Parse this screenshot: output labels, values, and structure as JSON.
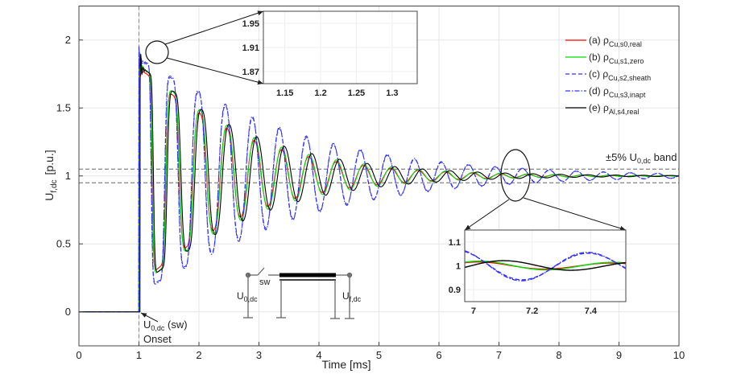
{
  "chart_data": {
    "type": "line",
    "xlabel": "Time  [ms]",
    "ylabel_main": "U",
    "ylabel_sub": "f,dc",
    "ylabel_unit": "[p.u.]",
    "xlim": [
      0,
      10
    ],
    "ylim": [
      -0.25,
      2.25
    ],
    "xticks": [
      "0",
      "1",
      "2",
      "3",
      "4",
      "5",
      "6",
      "7",
      "8",
      "9",
      "10"
    ],
    "yticks": [
      "0",
      "0.5",
      "1",
      "1.5",
      "2"
    ],
    "grid": true,
    "legend_position": "top-right",
    "onset_time": 1.0,
    "band": {
      "upper": 1.05,
      "lower": 0.95,
      "label": "±5% U",
      "label_sub": "0,dc",
      "label_tail": " band"
    },
    "series": [
      {
        "id": "a",
        "label": "(a) ρ",
        "sub": "Cu,s0,real",
        "color": "#ff0000",
        "dash": "",
        "decay_ms": 1.93,
        "period_ms": 0.455,
        "lag_ms": 0.0,
        "start_value": 1.84,
        "final_value": 1.0
      },
      {
        "id": "b",
        "label": "(b) ρ",
        "sub": "Cu,s1,zero",
        "color": "#00dd00",
        "dash": "",
        "decay_ms": 2.05,
        "period_ms": 0.455,
        "lag_ms": 0.005,
        "start_value": 1.86,
        "final_value": 1.0
      },
      {
        "id": "c",
        "label": "(c) ρ",
        "sub": "Cu,s2,sheath",
        "color": "#3333ff",
        "dash": "5,3",
        "decay_ms": 3.3,
        "period_ms": 0.45,
        "lag_ms": -0.01,
        "start_value": 1.9,
        "final_value": 1.0
      },
      {
        "id": "d",
        "label": "(d) ρ",
        "sub": "Cu,s3,inapt",
        "color": "#3333ff",
        "dash": "6,2,1.5,2",
        "decay_ms": 3.4,
        "period_ms": 0.45,
        "lag_ms": -0.012,
        "start_value": 1.91,
        "final_value": 1.0
      },
      {
        "id": "e",
        "label": "(e) ρ",
        "sub": "Al,s4,real",
        "color": "#000000",
        "dash": "",
        "decay_ms": 2.15,
        "period_ms": 0.46,
        "lag_ms": 0.02,
        "start_value": 1.85,
        "final_value": 1.0
      }
    ],
    "inset_top": {
      "xlim": [
        1.12,
        1.335
      ],
      "ylim": [
        1.85,
        1.97
      ],
      "xticks": [
        "1.15",
        "1.2",
        "1.25",
        "1.3"
      ],
      "yticks": [
        "1.87",
        "1.91",
        "1.95"
      ]
    },
    "inset_bottom": {
      "xlim": [
        6.97,
        7.52
      ],
      "ylim": [
        0.85,
        1.15
      ],
      "xticks": [
        "7",
        "7.2",
        "7.4"
      ],
      "yticks": [
        "0.9",
        "1",
        "1.1"
      ]
    },
    "annotations": {
      "onset_main": "U",
      "onset_sub": "0,dc",
      "onset_tail": " (sw)",
      "onset_label": "Onset"
    },
    "circuit": {
      "sw": "sw",
      "u0_main": "U",
      "u0_sub": "0,dc",
      "uf_main": "U",
      "uf_sub": "f,dc"
    }
  }
}
